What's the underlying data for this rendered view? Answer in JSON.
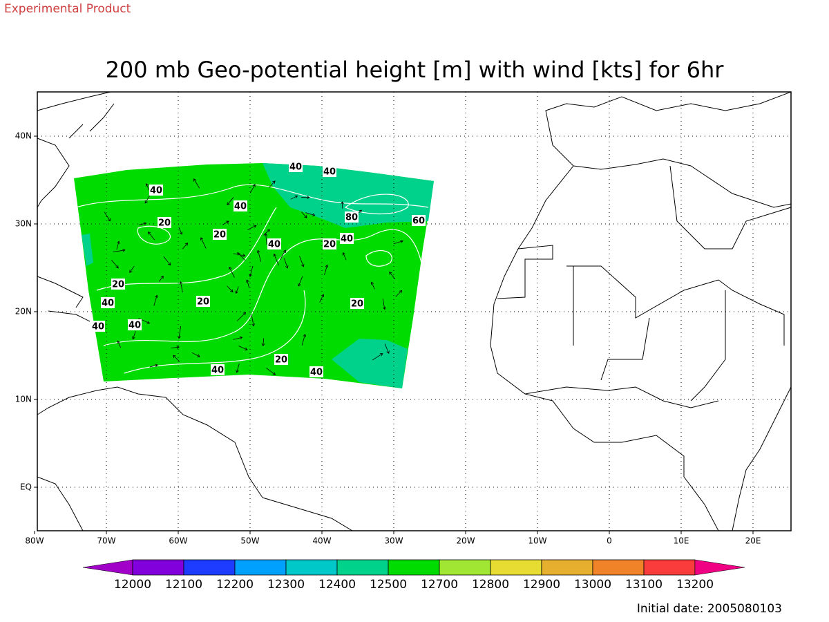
{
  "header": {
    "note": "Experimental Product",
    "title": "200 mb Geo-potential height [m] with wind [kts] for 6hr"
  },
  "map": {
    "lon_labels": [
      "80W",
      "70W",
      "60W",
      "50W",
      "40W",
      "30W",
      "20W",
      "10W",
      "0",
      "10E",
      "20E"
    ],
    "lat_labels": [
      "40N",
      "30N",
      "20N",
      "10N",
      "EQ"
    ],
    "contour_labels": [
      "40",
      "40",
      "40",
      "40",
      "20",
      "80",
      "60",
      "20",
      "40",
      "20",
      "40",
      "20",
      "40",
      "20",
      "20",
      "40",
      "40",
      "20",
      "40",
      "40"
    ]
  },
  "colorbar": {
    "levels": [
      "12000",
      "12100",
      "12200",
      "12300",
      "12400",
      "12500",
      "12700",
      "12800",
      "12900",
      "13000",
      "13100",
      "13200"
    ],
    "colors": [
      "#a000c8",
      "#8200dc",
      "#1e3cff",
      "#00a0ff",
      "#00c8c8",
      "#00d28c",
      "#00dc00",
      "#a0e632",
      "#e6dc32",
      "#e6af2d",
      "#f08228",
      "#fa3c3c",
      "#f00082"
    ]
  },
  "footer": {
    "initial_date": "Initial date: 2005080103"
  }
}
